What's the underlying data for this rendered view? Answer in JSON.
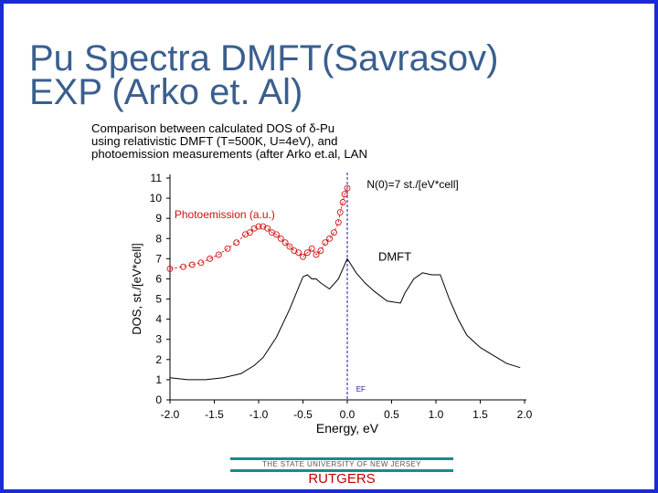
{
  "slide": {
    "title_line1": "Pu Spectra DMFT(Savrasov)",
    "title_line2": "EXP (Arko et. Al)",
    "caption_line1": "Comparison between calculated DOS of δ-Pu",
    "caption_line2": "using relativistic DMFT (T=500K, U=4eV), and",
    "caption_line3": "photoemission measurements (after Arko et.al, LAN",
    "footer_university": "THE STATE UNIVERSITY OF NEW JERSEY",
    "footer_brand": "RUTGERS"
  },
  "colors": {
    "frame": "#1a2bd6",
    "title": "#3a5f8e",
    "dmft_line": "#000000",
    "photoemission": "#d01010",
    "fermi_line": "#1a1aa0",
    "footer_brand": "#c00000",
    "footer_rule": "#1a8a8a"
  },
  "chart_data": {
    "type": "line",
    "xlabel": "Energy, eV",
    "ylabel": "DOS, st./[eV*cell]",
    "xlim": [
      -2.0,
      2.0
    ],
    "ylim": [
      0,
      11
    ],
    "xticks": [
      "-2.0",
      "-1.5",
      "-1.0",
      "-0.5",
      "0.0",
      "0.5",
      "1.0",
      "1.5",
      "2.0"
    ],
    "yticks": [
      "0",
      "1",
      "2",
      "3",
      "4",
      "5",
      "6",
      "7",
      "8",
      "9",
      "10",
      "11"
    ],
    "grid": false,
    "annotations": {
      "n0": "N(0)=7 st./[eV*cell]",
      "photoemission": "Photoemission (a.u.)",
      "dmft": "DMFT",
      "ef": "EF"
    },
    "fermi_level": 0.0,
    "series": [
      {
        "name": "DMFT",
        "style": "solid",
        "x": [
          -2.0,
          -1.8,
          -1.6,
          -1.4,
          -1.2,
          -1.05,
          -0.95,
          -0.8,
          -0.65,
          -0.5,
          -0.45,
          -0.4,
          -0.35,
          -0.3,
          -0.2,
          -0.1,
          0.0,
          0.1,
          0.2,
          0.3,
          0.45,
          0.6,
          0.65,
          0.75,
          0.85,
          0.95,
          1.05,
          1.15,
          1.25,
          1.35,
          1.5,
          1.65,
          1.8,
          1.95
        ],
        "y": [
          1.1,
          1.0,
          1.0,
          1.1,
          1.3,
          1.7,
          2.1,
          3.1,
          4.5,
          6.1,
          6.2,
          6.0,
          6.0,
          5.8,
          5.5,
          6.0,
          7.0,
          6.3,
          5.8,
          5.4,
          4.9,
          4.8,
          5.3,
          6.0,
          6.3,
          6.2,
          6.2,
          5.0,
          4.0,
          3.2,
          2.6,
          2.2,
          1.8,
          1.6
        ]
      },
      {
        "name": "Photoemission (a.u.)",
        "style": "dashed-circles",
        "x": [
          -2.0,
          -1.85,
          -1.75,
          -1.65,
          -1.55,
          -1.45,
          -1.35,
          -1.25,
          -1.15,
          -1.1,
          -1.05,
          -1.0,
          -0.95,
          -0.9,
          -0.85,
          -0.8,
          -0.75,
          -0.7,
          -0.65,
          -0.6,
          -0.55,
          -0.5,
          -0.45,
          -0.4,
          -0.35,
          -0.3,
          -0.25,
          -0.2,
          -0.15,
          -0.1,
          -0.08,
          -0.05,
          -0.03,
          0.0
        ],
        "y": [
          6.5,
          6.6,
          6.7,
          6.8,
          7.0,
          7.2,
          7.5,
          7.8,
          8.2,
          8.3,
          8.5,
          8.6,
          8.6,
          8.5,
          8.3,
          8.2,
          8.0,
          7.8,
          7.6,
          7.4,
          7.3,
          7.1,
          7.3,
          7.5,
          7.2,
          7.4,
          7.8,
          8.0,
          8.3,
          8.8,
          9.3,
          9.8,
          10.2,
          10.5
        ]
      }
    ]
  }
}
